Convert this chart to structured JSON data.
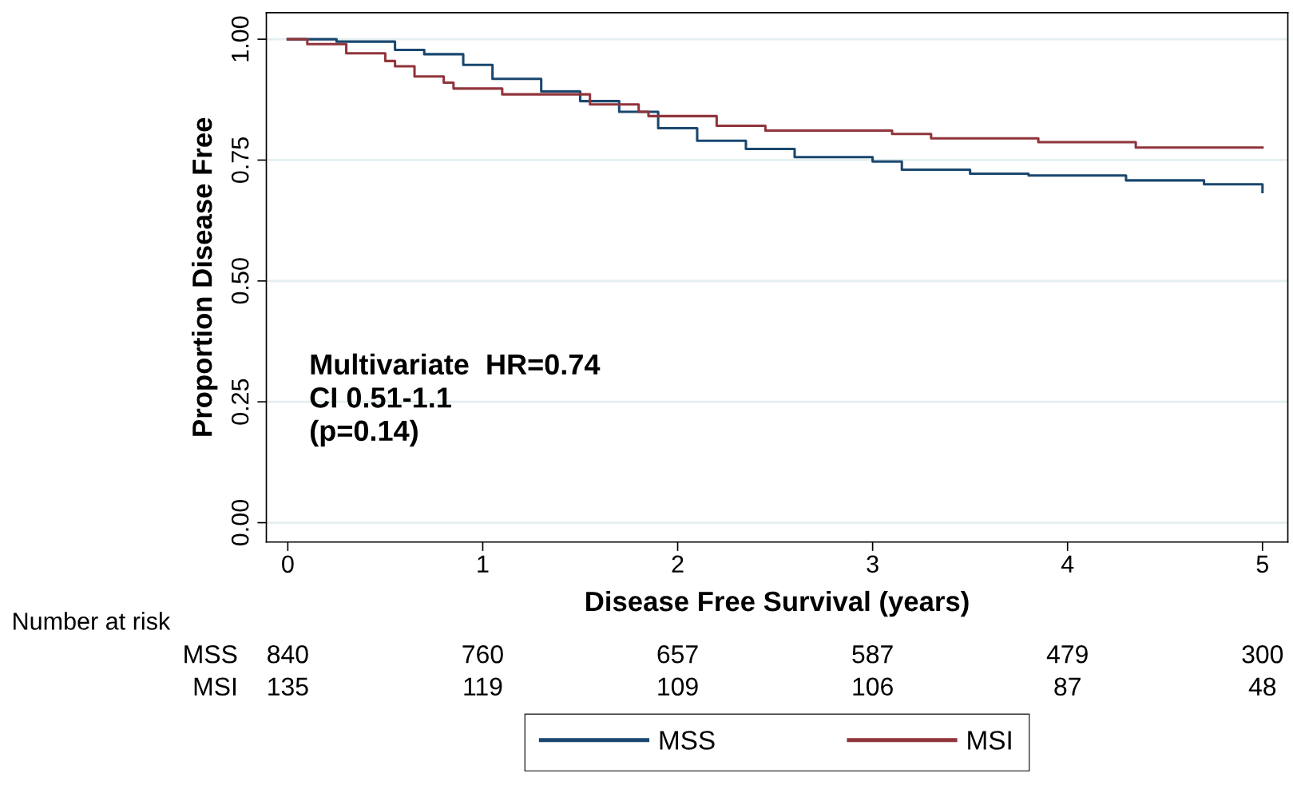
{
  "chart_data": {
    "type": "step",
    "xlabel": "Disease Free Survival (years)",
    "ylabel": "Proportion Disease Free",
    "xlim": [
      -0.11,
      5.13
    ],
    "ylim": [
      -0.04,
      1.055
    ],
    "xticks": [
      0,
      1,
      2,
      3,
      4,
      5
    ],
    "yticks": [
      {
        "value": 0,
        "label": "0.00"
      },
      {
        "value": 0.25,
        "label": "0.25"
      },
      {
        "value": 0.5,
        "label": "0.50"
      },
      {
        "value": 0.75,
        "label": "0.75"
      },
      {
        "value": 1,
        "label": "1.00"
      }
    ],
    "grid": "y",
    "legend": "bottom",
    "series": [
      {
        "name": "MSS",
        "color": "#1a476f",
        "x": [
          0,
          0.25,
          0.55,
          0.7,
          0.9,
          1.05,
          1.3,
          1.5,
          1.7,
          1.9,
          2.1,
          2.35,
          2.6,
          3.0,
          3.15,
          3.5,
          3.8,
          4.3,
          4.7,
          5.0
        ],
        "values": [
          1.0,
          0.995,
          0.978,
          0.969,
          0.947,
          0.918,
          0.892,
          0.872,
          0.85,
          0.816,
          0.79,
          0.773,
          0.756,
          0.747,
          0.73,
          0.722,
          0.718,
          0.708,
          0.7,
          0.684
        ]
      },
      {
        "name": "MSI",
        "color": "#90353b",
        "x": [
          0,
          0.1,
          0.3,
          0.5,
          0.55,
          0.65,
          0.8,
          0.85,
          1.1,
          1.55,
          1.8,
          1.85,
          2.2,
          2.45,
          3.1,
          3.3,
          3.85,
          4.35,
          5.0
        ],
        "values": [
          1.0,
          0.99,
          0.971,
          0.955,
          0.944,
          0.923,
          0.91,
          0.898,
          0.886,
          0.865,
          0.85,
          0.841,
          0.821,
          0.811,
          0.804,
          0.795,
          0.787,
          0.776,
          0.776
        ]
      }
    ],
    "annotations": [
      "Multivariate  HR=0.74\nCI 0.51-1.1\n(p=0.14)",
      "Number at risk",
      "MSS 840 760 657 587 479 300",
      "MSI 135 119 109 106 87 48"
    ]
  }
}
